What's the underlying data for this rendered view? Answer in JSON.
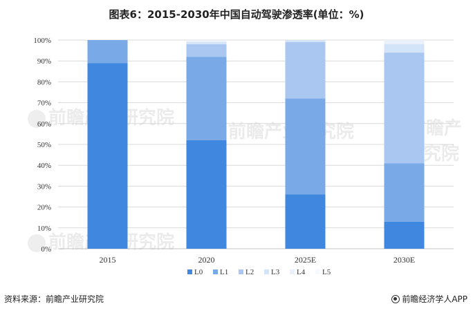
{
  "title": "图表6：2015-2030年中国自动驾驶渗透率(单位：%)",
  "source": "资料来源：前瞻产业研究院",
  "brand": "前瞻经济学人APP",
  "watermark": "前瞻产业研究院",
  "colors": {
    "L0": "#3f87df",
    "L1": "#7aa9e8",
    "L2": "#a9c7f1",
    "L3": "#d3e3f8",
    "L4": "#eaf1fb",
    "L5": "#f6f9fe",
    "grid": "#d9d9d9",
    "axis": "#bfbfbf"
  },
  "chart_data": {
    "type": "bar",
    "stacked": true,
    "categories": [
      "2015",
      "2020",
      "2025E",
      "2030E"
    ],
    "series": [
      {
        "name": "L0",
        "values": [
          89,
          52,
          26,
          13
        ]
      },
      {
        "name": "L1",
        "values": [
          11,
          40,
          46,
          28
        ]
      },
      {
        "name": "L2",
        "values": [
          0,
          6,
          27,
          53
        ]
      },
      {
        "name": "L3",
        "values": [
          0,
          1,
          1,
          4
        ]
      },
      {
        "name": "L4",
        "values": [
          0,
          1,
          0,
          2
        ]
      },
      {
        "name": "L5",
        "values": [
          0,
          0,
          0,
          0
        ]
      }
    ],
    "yticks": [
      "0%",
      "10%",
      "20%",
      "30%",
      "40%",
      "50%",
      "60%",
      "70%",
      "80%",
      "90%",
      "100%"
    ],
    "ylim": [
      0,
      100
    ],
    "grid": true,
    "legend_position": "bottom"
  }
}
